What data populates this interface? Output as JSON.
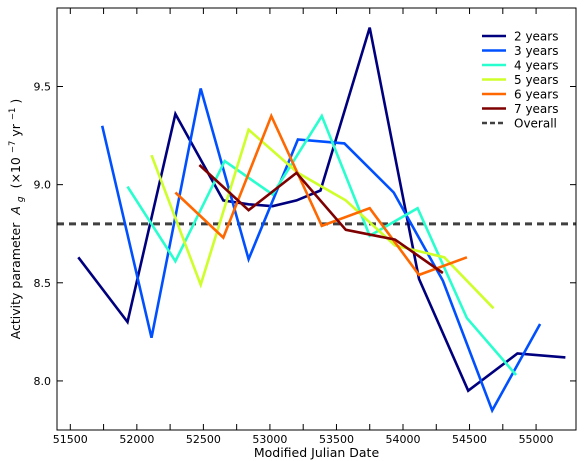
{
  "chart_data": {
    "type": "line",
    "xlabel": "Modified Julian Date",
    "ylabel_main": "Activity parameter",
    "ylabel_symbol": "A",
    "ylabel_subscript": "g",
    "ylabel_unit_open": "(×10",
    "ylabel_unit_exp": "−7",
    "ylabel_unit_mid": " yr",
    "ylabel_unit_exp2": "−1",
    "ylabel_unit_close": ")",
    "xlim": [
      51400,
      55300
    ],
    "ylim": [
      7.75,
      9.9
    ],
    "x_ticks": [
      51500,
      51750,
      52000,
      52250,
      52500,
      52750,
      53000,
      53250,
      53500,
      53750,
      54000,
      54250,
      54500,
      54750,
      55000
    ],
    "x_tick_labels": [
      "51500",
      "",
      "52000",
      "",
      "52500",
      "",
      "53000",
      "",
      "53500",
      "",
      "54000",
      "",
      "54500",
      "",
      "55000"
    ],
    "y_ticks": [
      8.0,
      8.5,
      9.0,
      9.5
    ],
    "y_tick_labels": [
      "8.0",
      "8.5",
      "9.0",
      "9.5"
    ],
    "legend_position": "top-right",
    "series": [
      {
        "name": "2 years",
        "color": "#00007f",
        "x": [
          51560,
          51930,
          52290,
          52650,
          52840,
          53020,
          53200,
          53380,
          53750,
          54120,
          54490,
          54860,
          55220
        ],
        "y": [
          8.63,
          8.3,
          9.36,
          8.92,
          8.9,
          8.89,
          8.92,
          8.97,
          9.8,
          8.52,
          7.95,
          8.14,
          8.12
        ]
      },
      {
        "name": "3 years",
        "color": "#0050ff",
        "x": [
          51740,
          52110,
          52480,
          52840,
          53210,
          53560,
          53930,
          54300,
          54670,
          55030
        ],
        "y": [
          9.3,
          8.22,
          9.49,
          8.62,
          9.23,
          9.21,
          8.96,
          8.51,
          7.85,
          8.29
        ]
      },
      {
        "name": "4 years",
        "color": "#29ffce",
        "x": [
          51930,
          52290,
          52660,
          53020,
          53390,
          53750,
          54110,
          54480,
          54850
        ],
        "y": [
          8.99,
          8.61,
          9.12,
          8.95,
          9.35,
          8.74,
          8.88,
          8.32,
          8.03
        ]
      },
      {
        "name": "5 years",
        "color": "#ceff29",
        "x": [
          52110,
          52480,
          52840,
          53210,
          53570,
          53940,
          54310,
          54680
        ],
        "y": [
          9.15,
          8.49,
          9.28,
          9.06,
          8.92,
          8.69,
          8.63,
          8.37
        ]
      },
      {
        "name": "6 years",
        "color": "#ff6800",
        "x": [
          52290,
          52650,
          53010,
          53390,
          53750,
          54120,
          54480
        ],
        "y": [
          8.96,
          8.73,
          9.35,
          8.79,
          8.88,
          8.54,
          8.63
        ]
      },
      {
        "name": "7 years",
        "color": "#7f0000",
        "x": [
          52470,
          52840,
          53200,
          53570,
          53940,
          54300
        ],
        "y": [
          9.1,
          8.87,
          9.06,
          8.77,
          8.72,
          8.55
        ]
      }
    ],
    "overall": {
      "name": "Overall",
      "color": "#404040",
      "y": 8.8
    }
  }
}
